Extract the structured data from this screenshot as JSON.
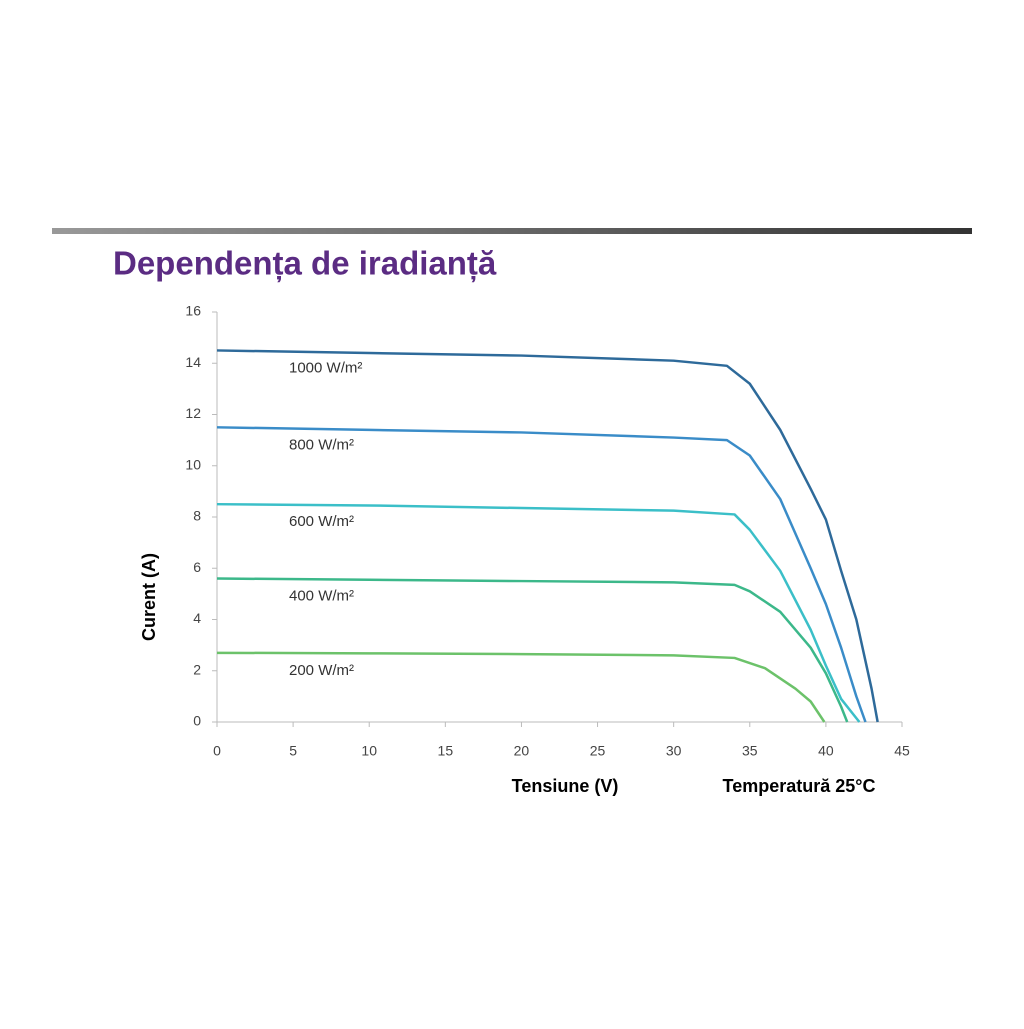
{
  "chart_data": {
    "type": "line",
    "title": "Dependența de iradianță",
    "x_label": "Tensiune (V)",
    "y_label": "Curent (A)",
    "annotation": "Temperatură 25°C",
    "xlim": [
      0,
      45
    ],
    "xticks": [
      0,
      5,
      10,
      15,
      20,
      25,
      30,
      35,
      40,
      45
    ],
    "ylim": [
      0,
      16
    ],
    "yticks": [
      0,
      2,
      4,
      6,
      8,
      10,
      12,
      14,
      16
    ],
    "grid": false,
    "series": [
      {
        "name": "1000 W/m²",
        "color": "#2e6a9a",
        "x": [
          0,
          10,
          20,
          30,
          33.5,
          35,
          37,
          39,
          40,
          41,
          42,
          43,
          43.4
        ],
        "values": [
          14.5,
          14.4,
          14.3,
          14.1,
          13.9,
          13.2,
          11.4,
          9.1,
          7.9,
          5.9,
          4.0,
          1.3,
          0
        ]
      },
      {
        "name": "800 W/m²",
        "color": "#3a8cc8",
        "x": [
          0,
          10,
          20,
          30,
          33.5,
          35,
          37,
          39,
          40,
          41,
          42,
          42.6
        ],
        "values": [
          11.5,
          11.4,
          11.3,
          11.1,
          11.0,
          10.4,
          8.7,
          6.0,
          4.6,
          2.9,
          1.0,
          0
        ]
      },
      {
        "name": "600 W/m²",
        "color": "#3bbfc8",
        "x": [
          0,
          10,
          20,
          30,
          34,
          35,
          37,
          39,
          40,
          41,
          42.2
        ],
        "values": [
          8.5,
          8.45,
          8.35,
          8.25,
          8.1,
          7.5,
          5.9,
          3.6,
          2.2,
          0.9,
          0
        ]
      },
      {
        "name": "400 W/m²",
        "color": "#3cb88a",
        "x": [
          0,
          10,
          20,
          30,
          34,
          35,
          37,
          39,
          40,
          41,
          41.4
        ],
        "values": [
          5.6,
          5.55,
          5.5,
          5.45,
          5.35,
          5.1,
          4.3,
          2.9,
          1.9,
          0.6,
          0
        ]
      },
      {
        "name": "200 W/m²",
        "color": "#6cc26a",
        "x": [
          0,
          10,
          20,
          30,
          34,
          36,
          38,
          39,
          39.9
        ],
        "values": [
          2.7,
          2.68,
          2.65,
          2.6,
          2.5,
          2.1,
          1.3,
          0.8,
          0
        ]
      }
    ]
  }
}
